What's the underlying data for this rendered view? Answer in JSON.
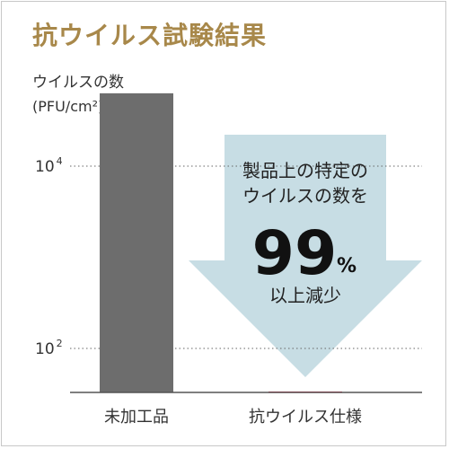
{
  "header": {
    "title": "抗ウイルス試験結果"
  },
  "axis": {
    "ylabel": "ウイルスの数",
    "yunit": "(PFU/cm²)*3"
  },
  "annotation": {
    "line1": "製品上の特定の",
    "line2": "ウイルスの数を",
    "number": "99",
    "percent": "%",
    "line3": "以上減少"
  },
  "chart_data": {
    "type": "bar",
    "title": "抗ウイルス試験結果",
    "ylabel": "ウイルスの数 (PFU/cm²)*3",
    "xlabel": "",
    "yscale": "log",
    "ylim": [
      10,
      100000
    ],
    "yticks": [
      {
        "exp": 4,
        "base": "10",
        "power": "4"
      },
      {
        "exp": 2,
        "base": "10",
        "power": "2"
      }
    ],
    "categories": [
      "未加工品",
      "抗ウイルス仕様"
    ],
    "values": [
      63000,
      20
    ],
    "colors": [
      "#6d6d6d",
      "#d6143a"
    ],
    "grid": "dotted horizontal",
    "arrow_color": "#c7dde4"
  }
}
